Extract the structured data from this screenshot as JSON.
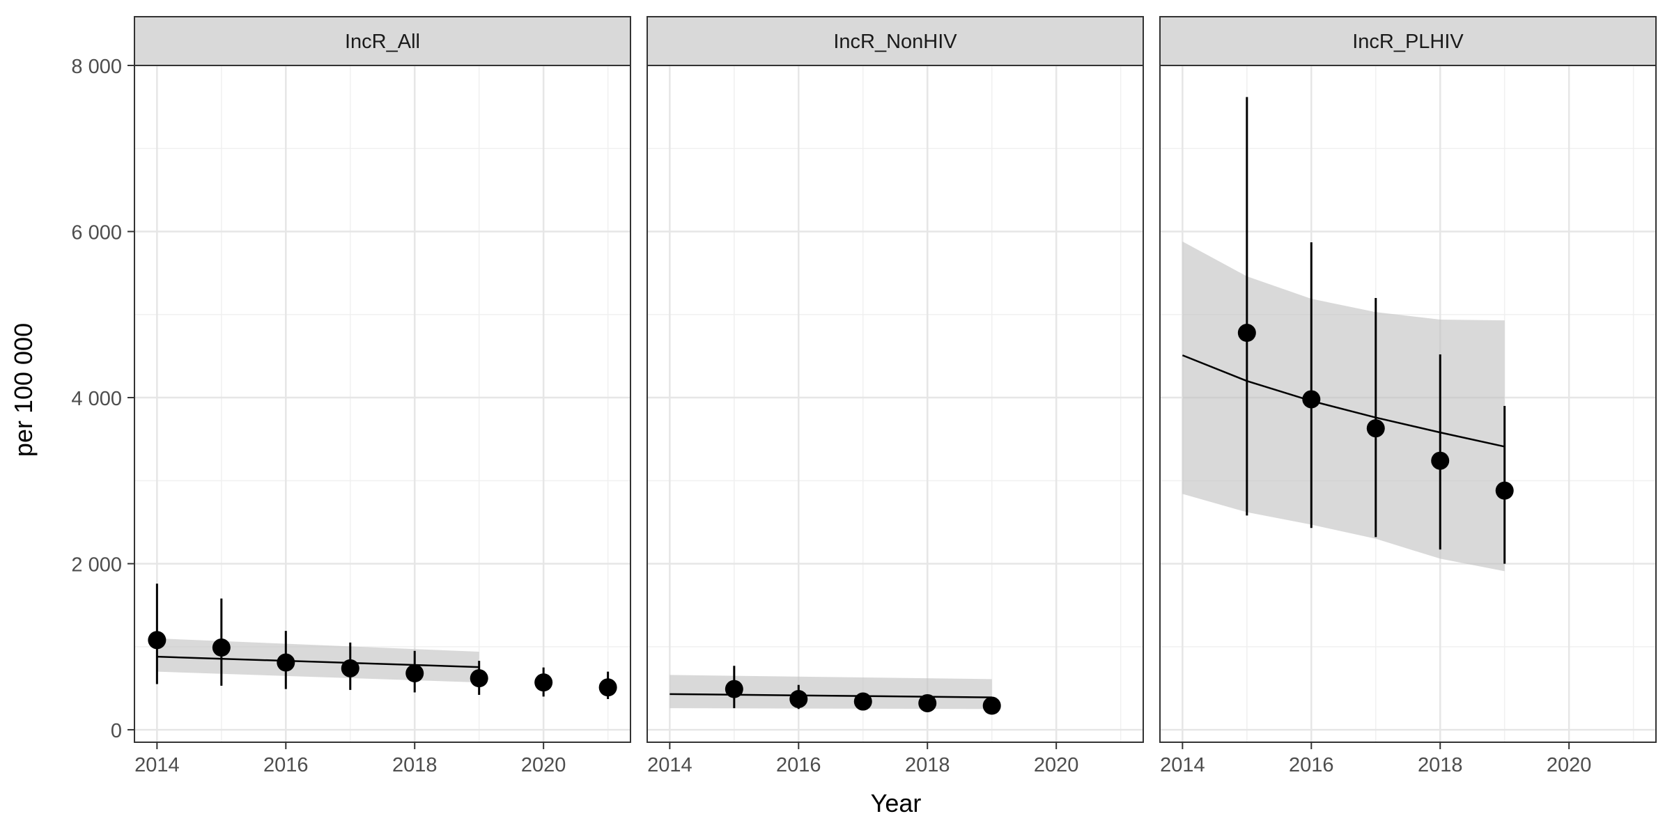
{
  "chart_data": {
    "type": "scatter",
    "layout": "faceted",
    "xlabel": "Year",
    "ylabel": "per 100 000",
    "ylim": [
      -150,
      8000
    ],
    "xlim": [
      2013.65,
      2021.35
    ],
    "y_ticks": [
      0,
      2000,
      4000,
      6000,
      8000
    ],
    "y_tick_labels": [
      "0",
      "2 000",
      "4 000",
      "6 000",
      "8 000"
    ],
    "x_ticks": [
      2014,
      2016,
      2018,
      2020
    ],
    "x_tick_labels": [
      "2014",
      "2016",
      "2018",
      "2020"
    ],
    "grid": true,
    "facets": [
      {
        "name": "IncR_All",
        "points": [
          {
            "x": 2014,
            "y": 1080,
            "lo": 550,
            "hi": 1760
          },
          {
            "x": 2015,
            "y": 990,
            "lo": 530,
            "hi": 1580
          },
          {
            "x": 2016,
            "y": 810,
            "lo": 490,
            "hi": 1190
          },
          {
            "x": 2017,
            "y": 740,
            "lo": 480,
            "hi": 1050
          },
          {
            "x": 2018,
            "y": 680,
            "lo": 450,
            "hi": 950
          },
          {
            "x": 2019,
            "y": 620,
            "lo": 420,
            "hi": 830
          },
          {
            "x": 2020,
            "y": 570,
            "lo": 400,
            "hi": 750
          },
          {
            "x": 2021,
            "y": 510,
            "lo": 370,
            "hi": 700
          }
        ],
        "trend": {
          "x": [
            2014,
            2019
          ],
          "y": [
            880,
            755
          ]
        },
        "band": {
          "x": [
            2014,
            2019
          ],
          "lo": [
            700,
            570
          ],
          "hi": [
            1100,
            940
          ]
        }
      },
      {
        "name": "IncR_NonHIV",
        "points": [
          {
            "x": 2015,
            "y": 490,
            "lo": 260,
            "hi": 770
          },
          {
            "x": 2016,
            "y": 370,
            "lo": 250,
            "hi": 540
          },
          {
            "x": 2017,
            "y": 340,
            "lo": 260,
            "hi": 440
          },
          {
            "x": 2018,
            "y": 320,
            "lo": 250,
            "hi": 400
          },
          {
            "x": 2019,
            "y": 290,
            "lo": 230,
            "hi": 360
          }
        ],
        "trend": {
          "x": [
            2014,
            2019
          ],
          "y": [
            430,
            390
          ]
        },
        "band": {
          "x": [
            2014,
            2019
          ],
          "lo": [
            260,
            250
          ],
          "hi": [
            660,
            610
          ]
        }
      },
      {
        "name": "IncR_PLHIV",
        "points": [
          {
            "x": 2015,
            "y": 4780,
            "lo": 2580,
            "hi": 7620
          },
          {
            "x": 2016,
            "y": 3980,
            "lo": 2430,
            "hi": 5870
          },
          {
            "x": 2017,
            "y": 3630,
            "lo": 2320,
            "hi": 5200
          },
          {
            "x": 2018,
            "y": 3240,
            "lo": 2170,
            "hi": 4520
          },
          {
            "x": 2019,
            "y": 2880,
            "lo": 2000,
            "hi": 3900
          }
        ],
        "trend": {
          "x": [
            2014,
            2015,
            2016,
            2017,
            2018,
            2019
          ],
          "y": [
            4510,
            4200,
            3960,
            3760,
            3580,
            3410
          ]
        },
        "band": {
          "x": [
            2014,
            2015,
            2016,
            2017,
            2018,
            2019
          ],
          "lo": [
            2840,
            2620,
            2470,
            2300,
            2060,
            1910
          ],
          "hi": [
            5880,
            5460,
            5190,
            5030,
            4940,
            4930
          ]
        }
      }
    ]
  }
}
